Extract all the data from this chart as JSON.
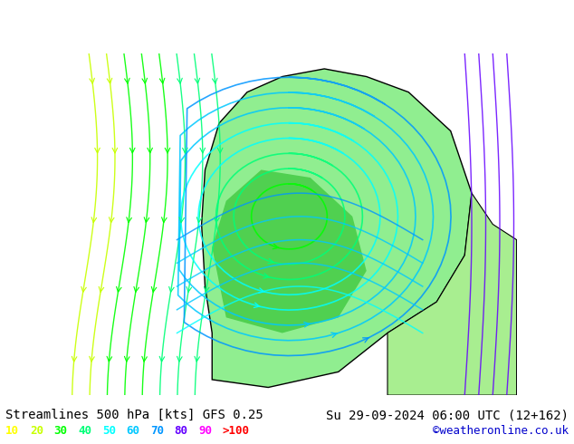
{
  "title_left": "Streamlines 500 hPa [kts] GFS 0.25",
  "title_right": "Su 29-09-2024 06:00 UTC (12+162)",
  "credit": "©weatheronline.co.uk",
  "legend_values": [
    "10",
    "20",
    "30",
    "40",
    "50",
    "60",
    "70",
    "80",
    "90",
    ">100"
  ],
  "legend_colors": [
    "#ffff00",
    "#c8ff00",
    "#00ff00",
    "#00ff78",
    "#00ffff",
    "#00c8ff",
    "#0096ff",
    "#6400ff",
    "#ff00ff",
    "#ff0000"
  ],
  "bg_color": "#d0d0d0",
  "land_color_gray": "#c8c8c8",
  "land_color_green": "#90ee90",
  "title_fontsize": 10,
  "credit_fontsize": 9,
  "legend_fontsize": 9
}
